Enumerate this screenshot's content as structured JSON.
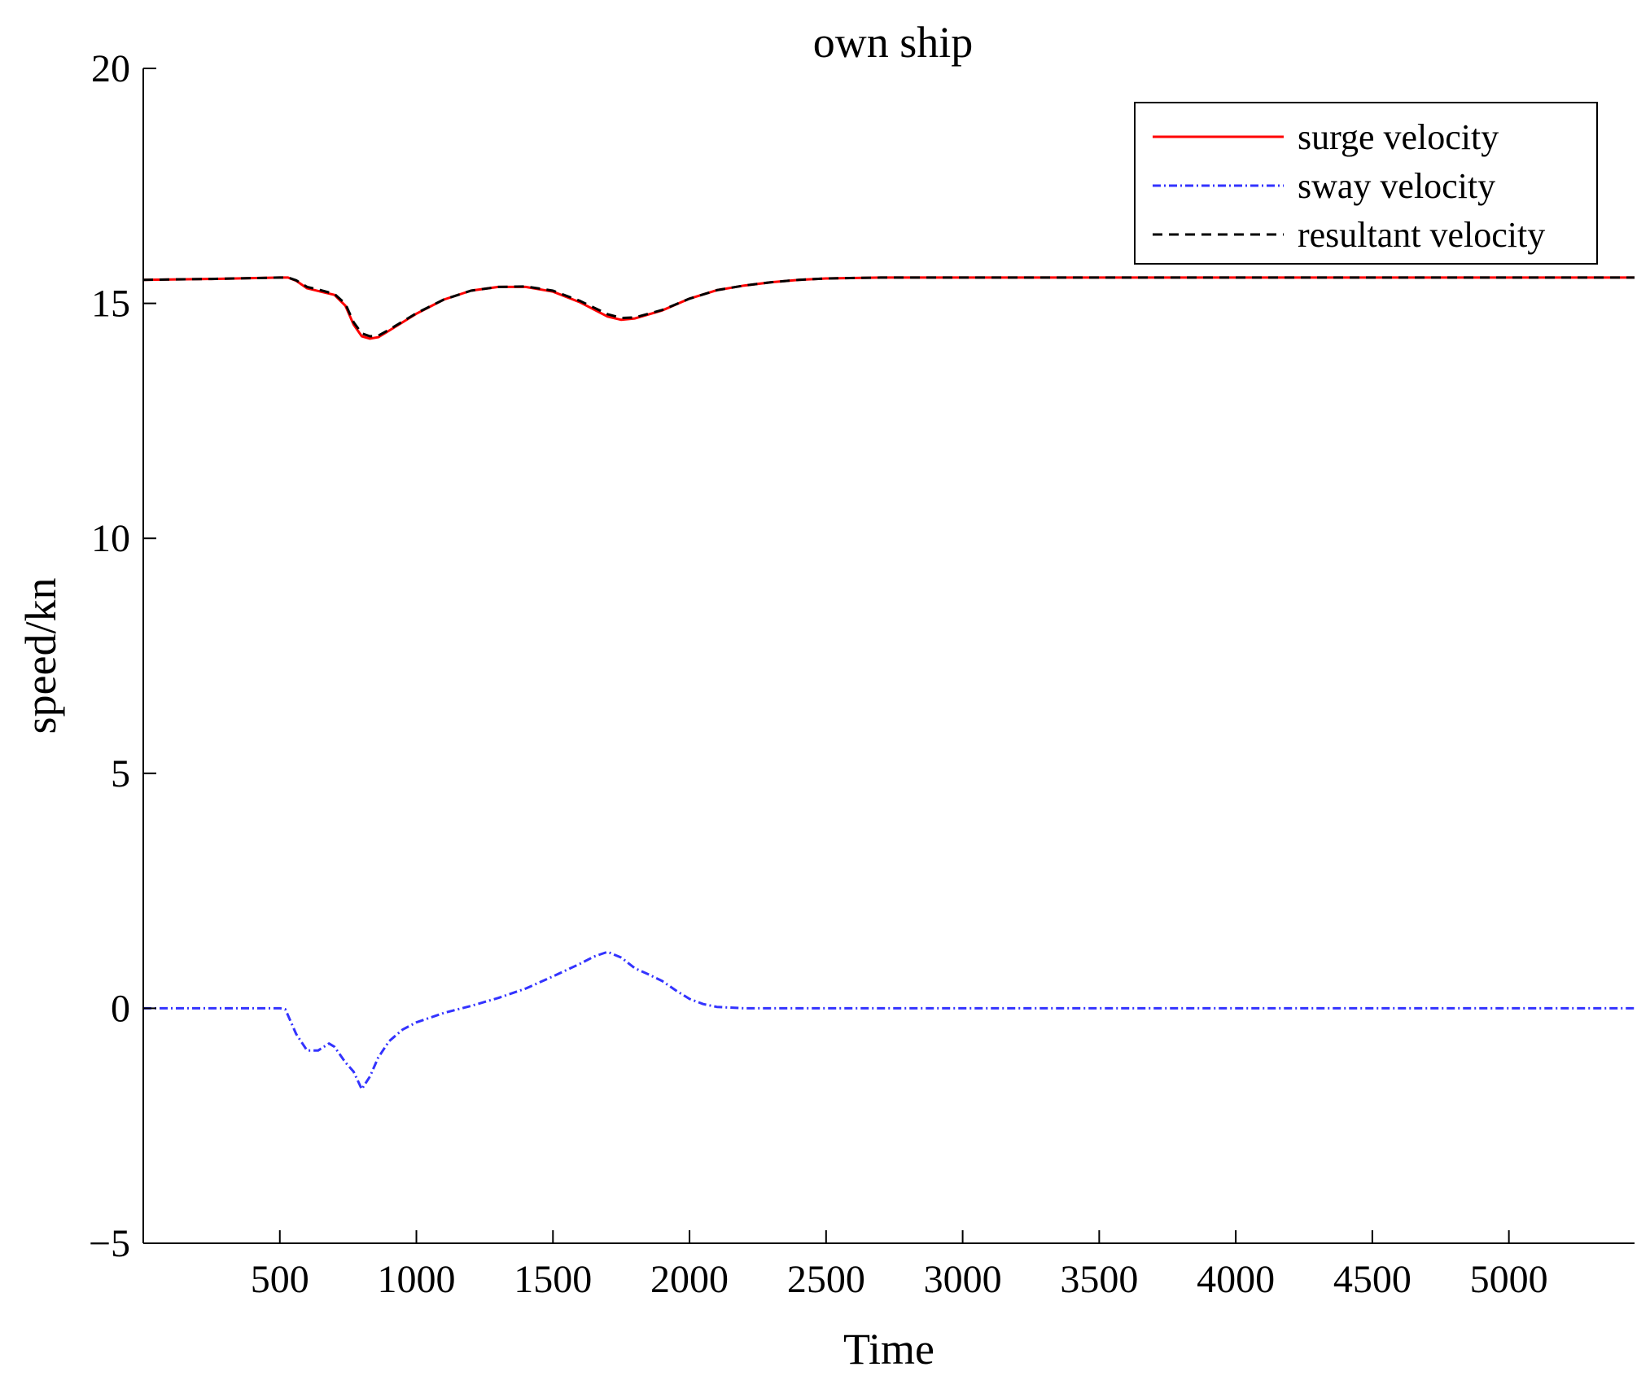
{
  "chart_data": {
    "type": "line",
    "title": "own ship",
    "xlabel": "Time",
    "ylabel": "speed/kn",
    "xlim": [
      0,
      5460
    ],
    "ylim": [
      -5,
      20
    ],
    "xticks": [
      500,
      1000,
      1500,
      2000,
      2500,
      3000,
      3500,
      4000,
      4500,
      5000
    ],
    "yticks": [
      -5,
      0,
      5,
      10,
      15,
      20
    ],
    "xtick_labels": [
      "500",
      "1000",
      "1500",
      "2000",
      "2500",
      "3000",
      "3500",
      "4000",
      "4500",
      "5000"
    ],
    "ytick_labels": [
      "−5",
      "0",
      "5",
      "10",
      "15",
      "20"
    ],
    "grid": false,
    "legend_position": "top-right",
    "series": [
      {
        "name": "surge velocity",
        "color": "#ff0000",
        "dash": "solid",
        "x": [
          0,
          250,
          500,
          530,
          560,
          600,
          650,
          700,
          740,
          770,
          800,
          830,
          860,
          900,
          1000,
          1100,
          1200,
          1300,
          1400,
          1500,
          1600,
          1700,
          1750,
          1800,
          1900,
          2000,
          2100,
          2200,
          2300,
          2400,
          2500,
          2700,
          3000,
          3500,
          4000,
          5460
        ],
        "y": [
          15.5,
          15.52,
          15.55,
          15.55,
          15.48,
          15.32,
          15.25,
          15.18,
          14.95,
          14.55,
          14.3,
          14.25,
          14.28,
          14.42,
          14.78,
          15.08,
          15.27,
          15.35,
          15.35,
          15.25,
          15.02,
          14.72,
          14.65,
          14.68,
          14.85,
          15.1,
          15.28,
          15.38,
          15.45,
          15.5,
          15.53,
          15.55,
          15.55,
          15.55,
          15.55,
          15.55
        ]
      },
      {
        "name": "sway velocity",
        "color": "#3333ff",
        "dash": "dash-dot",
        "x": [
          0,
          250,
          500,
          520,
          560,
          600,
          640,
          680,
          700,
          740,
          770,
          800,
          830,
          860,
          900,
          950,
          1000,
          1100,
          1200,
          1300,
          1400,
          1500,
          1600,
          1650,
          1700,
          1750,
          1800,
          1850,
          1900,
          1950,
          2000,
          2050,
          2100,
          2200,
          2300,
          2500,
          3000,
          4000,
          5460
        ],
        "y": [
          0,
          0,
          0,
          -0.02,
          -0.55,
          -0.9,
          -0.9,
          -0.75,
          -0.82,
          -1.15,
          -1.35,
          -1.72,
          -1.45,
          -1.05,
          -0.7,
          -0.45,
          -0.3,
          -0.1,
          0.05,
          0.22,
          0.42,
          0.68,
          0.95,
          1.1,
          1.2,
          1.08,
          0.85,
          0.72,
          0.58,
          0.38,
          0.2,
          0.09,
          0.03,
          0.0,
          0,
          0,
          0,
          0,
          0
        ]
      },
      {
        "name": "resultant velocity",
        "color": "#000000",
        "dash": "dashed",
        "x": [
          0,
          250,
          500,
          530,
          560,
          600,
          650,
          700,
          740,
          770,
          800,
          830,
          860,
          900,
          1000,
          1100,
          1200,
          1300,
          1400,
          1500,
          1600,
          1700,
          1750,
          1800,
          1900,
          2000,
          2100,
          2200,
          2300,
          2400,
          2500,
          2700,
          3000,
          3500,
          4000,
          5460
        ],
        "y": [
          15.5,
          15.52,
          15.55,
          15.55,
          15.49,
          15.35,
          15.28,
          15.2,
          14.99,
          14.6,
          14.36,
          14.3,
          14.31,
          14.44,
          14.79,
          15.08,
          15.27,
          15.35,
          15.36,
          15.27,
          15.05,
          14.77,
          14.69,
          14.7,
          14.86,
          15.1,
          15.28,
          15.38,
          15.45,
          15.5,
          15.53,
          15.55,
          15.55,
          15.55,
          15.55,
          15.55
        ]
      }
    ]
  }
}
